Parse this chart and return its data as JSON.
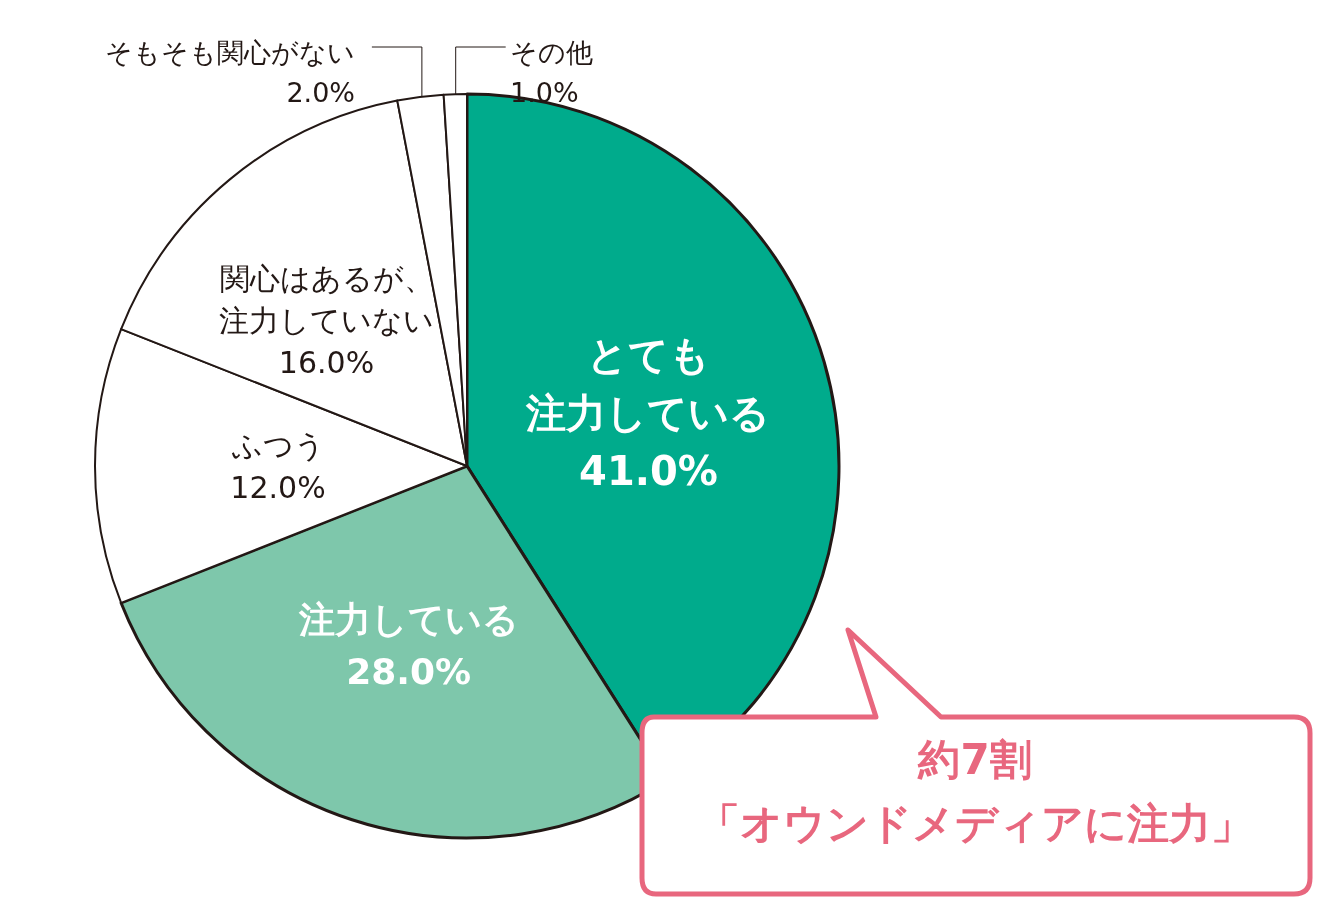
{
  "chart_data": {
    "type": "pie",
    "categories": [
      "とても注力している",
      "注力している",
      "ふつう",
      "関心はあるが、注力していない",
      "そもそも関心がない",
      "その他"
    ],
    "values": [
      41.0,
      28.0,
      12.0,
      16.0,
      2.0,
      1.0
    ],
    "value_labels": [
      "41.0%",
      "28.0%",
      "12.0%",
      "16.0%",
      "2.0%",
      "1.0%"
    ],
    "colors": [
      "#00ab8c",
      "#7ec7ab",
      "#ffffff",
      "#ffffff",
      "#ffffff",
      "#ffffff"
    ],
    "annotations": [
      "約7割",
      "「オウンドメディアに注力」"
    ]
  }
}
